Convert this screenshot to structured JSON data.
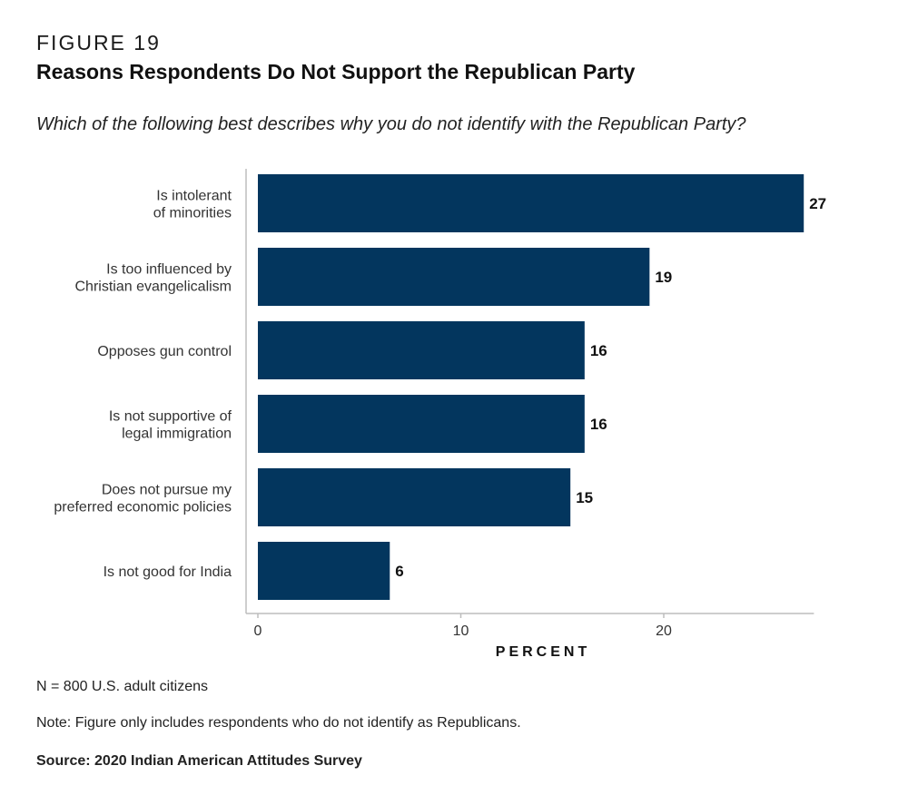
{
  "figure": {
    "label": "FIGURE 19",
    "title": "Reasons Respondents Do Not Support the Republican Party",
    "question": "Which of the following best describes why you do not identify with the Republican Party?"
  },
  "chart_data": {
    "type": "bar",
    "orientation": "horizontal",
    "categories": [
      [
        "Is intolerant",
        "of minorities"
      ],
      [
        "Is too influenced by",
        "Christian evangelicalism"
      ],
      [
        "Opposes gun control"
      ],
      [
        "Is not supportive of",
        "legal immigration"
      ],
      [
        "Does not pursue my",
        "preferred economic policies"
      ],
      [
        "Is not good for India"
      ]
    ],
    "values": [
      27,
      19,
      16,
      16,
      15,
      6
    ],
    "bar_lengths": [
      26.9,
      19.3,
      16.1,
      16.1,
      15.4,
      6.5
    ],
    "data_labels": [
      "27",
      "19",
      "16",
      "16",
      "15",
      "6"
    ],
    "xlabel": "PERCENT",
    "xticks": [
      0,
      10,
      20
    ],
    "xlim": [
      0,
      27.4
    ],
    "bar_color": "#03365e",
    "grid": false
  },
  "notes": {
    "n": "N = 800 U.S. adult citizens",
    "inclusion": "Note: Figure only includes respondents who do not identify as Republicans.",
    "source": "Source: 2020 Indian American Attitudes Survey"
  }
}
